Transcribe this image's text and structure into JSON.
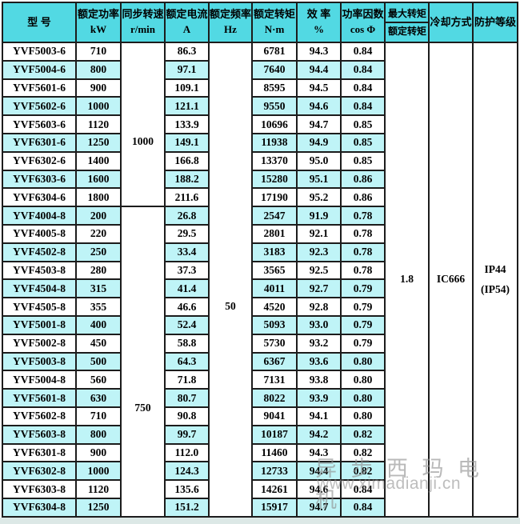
{
  "colors": {
    "header-bg": "#52d9e3",
    "stripe-bg": "#bff4f7",
    "border-color": "#1c1c1c",
    "bottom-strip": "#dce8e6",
    "watermark-color": "#8f8f8f"
  },
  "table": {
    "headers": [
      {
        "line1": "型  号",
        "line2": ""
      },
      {
        "line1": "额定功率",
        "line2": "kW"
      },
      {
        "line1": "同步转速",
        "line2": "r/min"
      },
      {
        "line1": "额定电流",
        "line2": "A"
      },
      {
        "line1": "额定频率",
        "line2": "Hz"
      },
      {
        "line1": "额定转矩",
        "line2": "N·m"
      },
      {
        "line1": "效 率",
        "line2": "%"
      },
      {
        "line1": "功率因数",
        "line2": "cos Φ"
      },
      {
        "line1": "最大转矩",
        "line2": "额定转矩"
      },
      {
        "line1": "冷却方式",
        "line2": ""
      },
      {
        "line1": "防护等级",
        "line2": ""
      }
    ],
    "merged": {
      "sync_speed_6pole": "1000",
      "sync_speed_8pole": "750",
      "frequency": "50",
      "torque_ratio": "1.8",
      "cooling": "IC666",
      "protection_line1": "IP44",
      "protection_line2": "(IP54)"
    },
    "rows": [
      [
        "YVF5003-6",
        "710",
        "86.3",
        "6781",
        "94.3",
        "0.84"
      ],
      [
        "YVF5004-6",
        "800",
        "97.1",
        "7640",
        "94.4",
        "0.84"
      ],
      [
        "YVF5601-6",
        "900",
        "109.1",
        "8595",
        "94.5",
        "0.84"
      ],
      [
        "YVF5602-6",
        "1000",
        "121.1",
        "9550",
        "94.6",
        "0.84"
      ],
      [
        "YVF5603-6",
        "1120",
        "133.9",
        "10696",
        "94.7",
        "0.85"
      ],
      [
        "YVF6301-6",
        "1250",
        "149.1",
        "11938",
        "94.9",
        "0.85"
      ],
      [
        "YVF6302-6",
        "1400",
        "166.8",
        "13370",
        "95.0",
        "0.85"
      ],
      [
        "YVF6303-6",
        "1600",
        "188.2",
        "15280",
        "95.1",
        "0.86"
      ],
      [
        "YVF6304-6",
        "1800",
        "211.6",
        "17190",
        "95.2",
        "0.86"
      ],
      [
        "YVF4004-8",
        "200",
        "26.8",
        "2547",
        "91.9",
        "0.78"
      ],
      [
        "YVF4005-8",
        "220",
        "29.5",
        "2801",
        "92.1",
        "0.78"
      ],
      [
        "YVF4502-8",
        "250",
        "33.4",
        "3183",
        "92.3",
        "0.78"
      ],
      [
        "YVF4503-8",
        "280",
        "37.3",
        "3565",
        "92.5",
        "0.78"
      ],
      [
        "YVF4504-8",
        "315",
        "41.4",
        "4011",
        "92.7",
        "0.79"
      ],
      [
        "YVF4505-8",
        "355",
        "46.6",
        "4520",
        "92.8",
        "0.79"
      ],
      [
        "YVF5001-8",
        "400",
        "52.4",
        "5093",
        "93.0",
        "0.79"
      ],
      [
        "YVF5002-8",
        "450",
        "58.8",
        "5730",
        "93.2",
        "0.79"
      ],
      [
        "YVF5003-8",
        "500",
        "64.3",
        "6367",
        "93.6",
        "0.80"
      ],
      [
        "YVF5004-8",
        "560",
        "71.8",
        "7131",
        "93.8",
        "0.80"
      ],
      [
        "YVF5601-8",
        "630",
        "80.7",
        "8022",
        "93.9",
        "0.80"
      ],
      [
        "YVF5602-8",
        "710",
        "90.8",
        "9041",
        "94.1",
        "0.80"
      ],
      [
        "YVF5603-8",
        "800",
        "99.7",
        "10187",
        "94.2",
        "0.82"
      ],
      [
        "YVF6301-8",
        "900",
        "112.0",
        "11460",
        "94.3",
        "0.82"
      ],
      [
        "YVF6302-8",
        "1000",
        "124.3",
        "12733",
        "94.4",
        "0.82"
      ],
      [
        "YVF6303-8",
        "1120",
        "135.6",
        "14261",
        "94.6",
        "0.84"
      ],
      [
        "YVF6304-8",
        "1250",
        "151.2",
        "15917",
        "94.7",
        "0.84"
      ]
    ]
  },
  "watermark": {
    "cn": "异 步 西 玛 电 机",
    "url": "www.ximadianji.cn"
  }
}
